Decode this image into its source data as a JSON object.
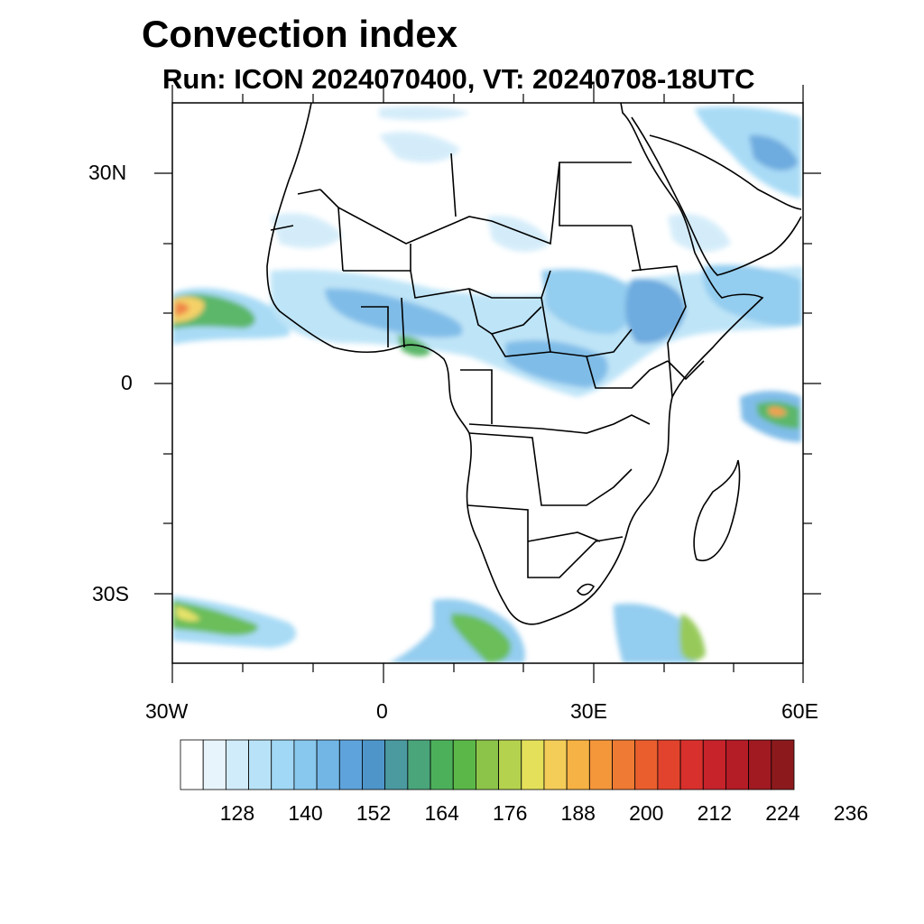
{
  "title": "Convection index",
  "subtitle": "Run: ICON 2024070400,  VT: 20240708-18UTC",
  "map": {
    "lat_labels": [
      "30N",
      "0",
      "30S"
    ],
    "lon_labels": [
      "30W",
      "0",
      "30E",
      "60E"
    ]
  },
  "colorbar": {
    "colors": [
      "#ffffff",
      "#e8f4fc",
      "#d0ebf9",
      "#b8e2f7",
      "#a0d8f5",
      "#88c8ee",
      "#72b6e6",
      "#5ea3dc",
      "#4e95ca",
      "#4a9aa0",
      "#4aa57a",
      "#4cb05a",
      "#5bb848",
      "#8cc44a",
      "#b5d24e",
      "#e4e05a",
      "#f4cc58",
      "#f6b244",
      "#f4963a",
      "#ef7a34",
      "#ea5e2e",
      "#e2432c",
      "#d8302c",
      "#c6232b",
      "#b41c26",
      "#a11a22",
      "#8c1a1c"
    ],
    "labels": [
      "128",
      "140",
      "152",
      "164",
      "176",
      "188",
      "200",
      "212",
      "224",
      "236"
    ]
  }
}
